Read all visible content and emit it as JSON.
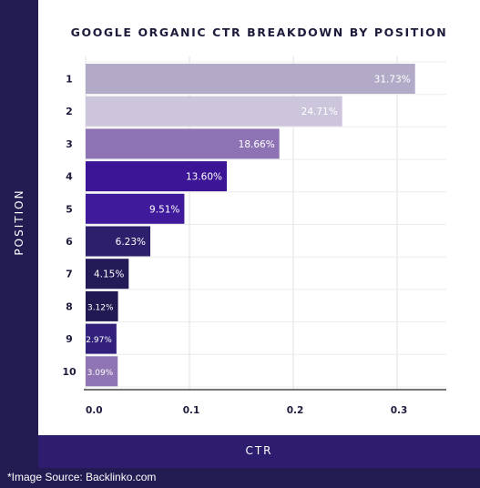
{
  "source_note": "*Image Source: Backlinko.com",
  "chart_data": {
    "type": "bar",
    "orientation": "horizontal",
    "title": "GOOGLE ORGANIC CTR BREAKDOWN BY POSITION",
    "xlabel": "CTR",
    "ylabel": "POSITION",
    "xlim": [
      0,
      0.34
    ],
    "x_ticks": [
      0.0,
      0.1,
      0.2,
      0.3
    ],
    "x_tick_labels": [
      "0.0",
      "0.1",
      "0.2",
      "0.3"
    ],
    "grid": true,
    "categories": [
      "1",
      "2",
      "3",
      "4",
      "5",
      "6",
      "7",
      "8",
      "9",
      "10"
    ],
    "values": [
      0.3173,
      0.2471,
      0.1866,
      0.136,
      0.0951,
      0.0623,
      0.0415,
      0.0312,
      0.0297,
      0.0309
    ],
    "value_labels": [
      "31.73%",
      "24.71%",
      "18.66%",
      "13.60%",
      "9.51%",
      "6.23%",
      "4.15%",
      "3.12%",
      "2.97%",
      "3.09%"
    ],
    "colors": [
      "#b3aac8",
      "#ccc5dc",
      "#8d73b4",
      "#3b1596",
      "#3f1b9c",
      "#2d1f6c",
      "#231a58",
      "#211a52",
      "#32207c",
      "#8f75b3"
    ]
  }
}
